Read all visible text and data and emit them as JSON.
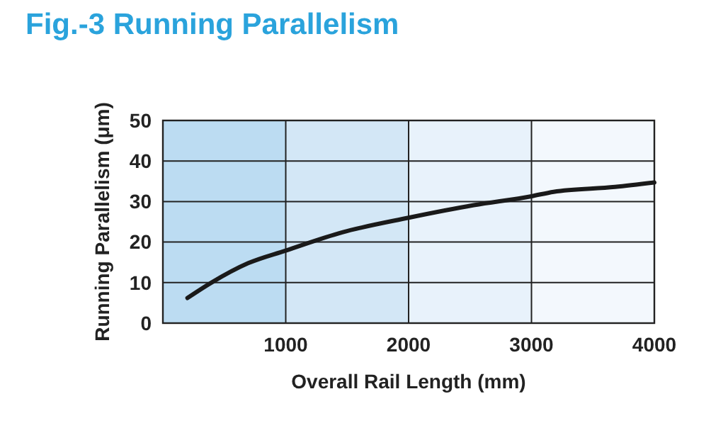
{
  "chart_data": {
    "type": "line",
    "title": "Fig.-3  Running Parallelism",
    "xlabel": "Overall Rail Length (mm)",
    "ylabel": "Running Parallelism (μm)",
    "x": [
      200,
      390,
      695,
      1000,
      1460,
      2000,
      2530,
      3000,
      3180,
      3680,
      4000
    ],
    "series": [
      {
        "color": "#1a1a1a",
        "values": [
          6.2,
          9.9,
          14.8,
          17.9,
          22.4,
          26,
          29.1,
          31.3,
          32.4,
          33.6,
          34.7
        ]
      }
    ],
    "xlim": [
      0,
      4000
    ],
    "xticks": [
      {
        "value": 0,
        "label": null
      },
      1000,
      2000,
      3000,
      4000
    ],
    "ylim": [
      0,
      50
    ],
    "yticks": [
      0,
      10,
      20,
      30,
      40,
      50
    ],
    "bands": [
      {
        "axis": "x",
        "from": 0,
        "to": 1000,
        "color": "#bcdcf2"
      },
      {
        "axis": "x",
        "from": 1000,
        "to": 2000,
        "color": "#d3e7f6"
      },
      {
        "axis": "x",
        "from": 2000,
        "to": 3000,
        "color": "#e8f2fb"
      },
      {
        "axis": "x",
        "from": 3000,
        "to": 4000,
        "color": "#f3f8fd"
      }
    ],
    "grid": true,
    "marker": "none",
    "line_style": "solid"
  }
}
